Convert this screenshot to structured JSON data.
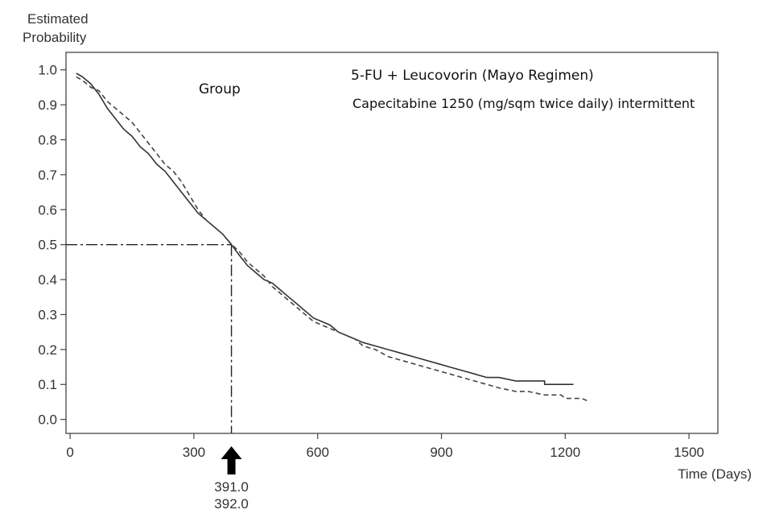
{
  "chart_data": {
    "type": "line",
    "ylabel_line1": "Estimated",
    "ylabel_line2": "Probability",
    "xlabel": "Time (Days)",
    "xlim": [
      -10,
      1570
    ],
    "ylim": [
      -0.04,
      1.05
    ],
    "x_ticks": [
      0,
      300,
      600,
      900,
      1200,
      1500
    ],
    "y_ticks": [
      0.0,
      0.1,
      0.2,
      0.3,
      0.4,
      0.5,
      0.6,
      0.7,
      0.8,
      0.9,
      1.0
    ],
    "grid": false,
    "legend_title": "Group",
    "series": [
      {
        "name": "5-FU + Leucovorin (Mayo Regimen)",
        "style": "solid",
        "color": "#333333",
        "x": [
          15,
          30,
          50,
          70,
          90,
          110,
          130,
          150,
          170,
          190,
          210,
          230,
          250,
          270,
          290,
          310,
          330,
          350,
          370,
          391,
          410,
          430,
          450,
          470,
          490,
          510,
          530,
          550,
          570,
          590,
          610,
          630,
          650,
          670,
          690,
          710,
          740,
          770,
          800,
          830,
          860,
          890,
          920,
          950,
          980,
          1010,
          1040,
          1080,
          1110,
          1150,
          1150,
          1220
        ],
        "y": [
          0.99,
          0.98,
          0.96,
          0.93,
          0.89,
          0.86,
          0.83,
          0.81,
          0.78,
          0.76,
          0.73,
          0.71,
          0.68,
          0.65,
          0.62,
          0.59,
          0.57,
          0.55,
          0.53,
          0.5,
          0.47,
          0.44,
          0.42,
          0.4,
          0.39,
          0.37,
          0.35,
          0.33,
          0.31,
          0.29,
          0.28,
          0.27,
          0.25,
          0.24,
          0.23,
          0.22,
          0.21,
          0.2,
          0.19,
          0.18,
          0.17,
          0.16,
          0.15,
          0.14,
          0.13,
          0.12,
          0.12,
          0.11,
          0.11,
          0.11,
          0.1,
          0.1
        ]
      },
      {
        "name": "Capecitabine 1250 (mg/sqm twice daily) intermittent",
        "style": "dashed",
        "color": "#333333",
        "x": [
          15,
          30,
          50,
          70,
          90,
          110,
          130,
          150,
          170,
          190,
          210,
          230,
          250,
          270,
          290,
          310,
          330,
          350,
          370,
          392,
          410,
          430,
          450,
          470,
          490,
          510,
          530,
          550,
          570,
          590,
          610,
          630,
          650,
          670,
          690,
          710,
          740,
          770,
          800,
          830,
          860,
          890,
          920,
          950,
          980,
          1010,
          1040,
          1080,
          1110,
          1150,
          1190,
          1200,
          1240,
          1260
        ],
        "y": [
          0.98,
          0.97,
          0.95,
          0.94,
          0.91,
          0.89,
          0.87,
          0.85,
          0.82,
          0.79,
          0.76,
          0.73,
          0.71,
          0.68,
          0.64,
          0.6,
          0.57,
          0.55,
          0.53,
          0.5,
          0.48,
          0.45,
          0.43,
          0.41,
          0.38,
          0.36,
          0.34,
          0.32,
          0.3,
          0.28,
          0.27,
          0.26,
          0.25,
          0.24,
          0.23,
          0.21,
          0.2,
          0.18,
          0.17,
          0.16,
          0.15,
          0.14,
          0.13,
          0.12,
          0.11,
          0.1,
          0.09,
          0.08,
          0.08,
          0.07,
          0.07,
          0.06,
          0.06,
          0.05
        ]
      }
    ],
    "median_reference": {
      "y": 0.5,
      "x": 391.0
    },
    "median_labels": [
      "391.0",
      "392.0"
    ]
  }
}
